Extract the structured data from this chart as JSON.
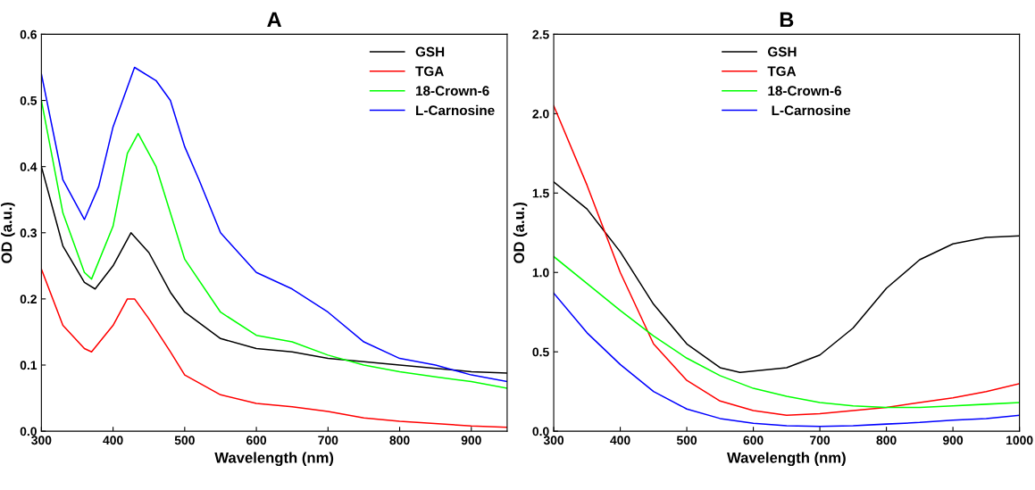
{
  "chart_data": [
    {
      "type": "line",
      "title": "A",
      "xlabel": "Wavelength (nm)",
      "ylabel": "OD (a.u.)",
      "legend": "top right",
      "grid": false,
      "xlim": [
        300,
        950
      ],
      "xticks": [
        300,
        400,
        500,
        600,
        700,
        800,
        900
      ],
      "ylim": [
        0,
        0.6
      ],
      "yticks": [
        {
          "value": 0,
          "label": "0.0"
        },
        0.1,
        0.2,
        0.3,
        0.4,
        0.5,
        0.6
      ],
      "series": [
        {
          "name": "GSH",
          "color": "#000000",
          "x": [
            300,
            330,
            360,
            375,
            400,
            425,
            450,
            480,
            500,
            550,
            600,
            650,
            700,
            800,
            900,
            950
          ],
          "values": [
            0.4,
            0.28,
            0.225,
            0.215,
            0.25,
            0.3,
            0.27,
            0.21,
            0.18,
            0.14,
            0.125,
            0.12,
            0.11,
            0.1,
            0.09,
            0.088
          ]
        },
        {
          "name": "TGA",
          "color": "#ff0000",
          "x": [
            300,
            330,
            360,
            370,
            400,
            420,
            430,
            450,
            480,
            500,
            550,
            600,
            650,
            700,
            750,
            800,
            900,
            950
          ],
          "values": [
            0.245,
            0.16,
            0.125,
            0.12,
            0.16,
            0.2,
            0.2,
            0.17,
            0.12,
            0.085,
            0.055,
            0.042,
            0.037,
            0.03,
            0.02,
            0.015,
            0.008,
            0.006
          ]
        },
        {
          "name": "18-Crown-6",
          "color": "#00ff00",
          "x": [
            300,
            330,
            360,
            370,
            400,
            420,
            435,
            460,
            480,
            500,
            550,
            600,
            650,
            700,
            750,
            800,
            850,
            900,
            950
          ],
          "values": [
            0.5,
            0.33,
            0.24,
            0.23,
            0.31,
            0.42,
            0.45,
            0.4,
            0.33,
            0.26,
            0.18,
            0.145,
            0.135,
            0.115,
            0.1,
            0.09,
            0.082,
            0.075,
            0.065
          ]
        },
        {
          "name": "L-Carnosine",
          "color": "#0000ff",
          "x": [
            300,
            330,
            360,
            380,
            400,
            430,
            460,
            480,
            500,
            520,
            550,
            600,
            650,
            700,
            750,
            800,
            850,
            900,
            950
          ],
          "values": [
            0.54,
            0.38,
            0.32,
            0.37,
            0.46,
            0.55,
            0.53,
            0.5,
            0.43,
            0.38,
            0.3,
            0.24,
            0.215,
            0.18,
            0.135,
            0.11,
            0.1,
            0.085,
            0.075
          ]
        }
      ]
    },
    {
      "type": "line",
      "title": "B",
      "xlabel": "Wavelength (nm)",
      "ylabel": "OD (a.u.)",
      "legend": "top",
      "grid": false,
      "xlim": [
        300,
        1000
      ],
      "xticks": [
        300,
        400,
        500,
        600,
        700,
        800,
        900,
        1000
      ],
      "ylim": [
        0,
        2.5
      ],
      "yticks": [
        {
          "value": 0,
          "label": "0.0"
        },
        0.5,
        {
          "value": 1,
          "label": "1.0"
        },
        1.5,
        {
          "value": 2,
          "label": "2.0"
        },
        2.5
      ],
      "series": [
        {
          "name": "GSH",
          "color": "#000000",
          "x": [
            300,
            350,
            400,
            450,
            500,
            550,
            580,
            650,
            700,
            750,
            800,
            850,
            900,
            950,
            1000
          ],
          "values": [
            1.57,
            1.4,
            1.13,
            0.8,
            0.55,
            0.4,
            0.37,
            0.4,
            0.48,
            0.65,
            0.9,
            1.08,
            1.18,
            1.22,
            1.23
          ]
        },
        {
          "name": "TGA",
          "color": "#ff0000",
          "x": [
            300,
            350,
            400,
            450,
            500,
            550,
            600,
            650,
            700,
            750,
            800,
            850,
            900,
            950,
            1000
          ],
          "values": [
            2.05,
            1.55,
            1.0,
            0.55,
            0.32,
            0.19,
            0.13,
            0.1,
            0.11,
            0.13,
            0.15,
            0.18,
            0.21,
            0.25,
            0.3
          ]
        },
        {
          "name": "18-Crown-6",
          "color": "#00ff00",
          "x": [
            300,
            350,
            400,
            450,
            500,
            550,
            600,
            650,
            700,
            750,
            800,
            850,
            900,
            950,
            1000
          ],
          "values": [
            1.1,
            0.93,
            0.76,
            0.6,
            0.46,
            0.35,
            0.27,
            0.22,
            0.18,
            0.16,
            0.15,
            0.15,
            0.16,
            0.17,
            0.18
          ]
        },
        {
          "name": " L-Carnosine",
          "color": "#0000ff",
          "x": [
            300,
            350,
            400,
            450,
            500,
            550,
            600,
            650,
            700,
            750,
            800,
            850,
            900,
            950,
            1000
          ],
          "values": [
            0.87,
            0.62,
            0.42,
            0.25,
            0.14,
            0.08,
            0.05,
            0.035,
            0.03,
            0.035,
            0.045,
            0.055,
            0.07,
            0.08,
            0.1
          ]
        }
      ]
    }
  ]
}
